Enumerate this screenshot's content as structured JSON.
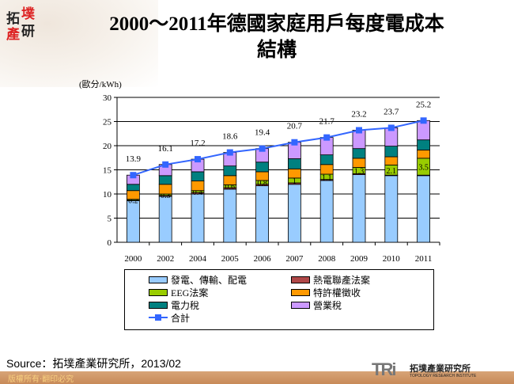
{
  "header": {
    "logo_text": "拓墣產研",
    "title_line1": "2000～2011年德國家庭用戶每度電成本",
    "title_line2": "結構"
  },
  "chart_data": {
    "type": "bar",
    "stacked": true,
    "title": "2000～2011年德國家庭用戶每度電成本結構",
    "ylabel": "(歐分/kWh)",
    "ylim": [
      0,
      30
    ],
    "yticks": [
      "0",
      "5",
      "10",
      "15",
      "20",
      "25",
      "30"
    ],
    "categories": [
      "2000",
      "2002",
      "2004",
      "2005",
      "2006",
      "2007",
      "2008",
      "2009",
      "2010",
      "2011"
    ],
    "grid": true,
    "legend_placement": "bottom",
    "series": [
      {
        "name": "發電、傳輸、配電",
        "color": "#99ccff",
        "values": [
          8.6,
          9.5,
          10.0,
          11.0,
          11.7,
          12.0,
          12.8,
          14.0,
          13.8,
          13.8
        ]
      },
      {
        "name": "熱電聯產法案",
        "color": "#b04848",
        "values": [
          0.1,
          0.2,
          0.3,
          0.3,
          0.3,
          0.3,
          0.2,
          0.2,
          0.1,
          0.1
        ]
      },
      {
        "name": "EEG法案",
        "color": "#99cc00",
        "values": [
          0.2,
          0.3,
          0.4,
          0.6,
          0.8,
          1.0,
          1.1,
          1.3,
          2.1,
          3.5
        ],
        "labels": [
          "0.2",
          "0.3",
          "0.4",
          "0.6",
          "0.8",
          "1",
          "1.1",
          "1.3",
          "2.1",
          "3.5"
        ]
      },
      {
        "name": "特許權徵收",
        "color": "#ff9900",
        "values": [
          1.8,
          2.0,
          2.0,
          1.9,
          1.8,
          1.9,
          2.0,
          1.9,
          1.7,
          1.7
        ]
      },
      {
        "name": "電力稅",
        "color": "#008080",
        "values": [
          1.3,
          1.8,
          1.9,
          2.0,
          2.0,
          2.1,
          2.0,
          2.0,
          2.2,
          2.1
        ]
      },
      {
        "name": "營業稅",
        "color": "#cc99ff",
        "values": [
          1.9,
          2.3,
          2.6,
          2.8,
          2.8,
          3.4,
          3.6,
          3.8,
          3.8,
          4.0
        ]
      }
    ],
    "line": {
      "name": "合計",
      "color": "#3366ff",
      "values": [
        13.9,
        16.1,
        17.2,
        18.6,
        19.4,
        20.7,
        21.7,
        23.2,
        23.7,
        25.2
      ],
      "labels": [
        "13.9",
        "16.1",
        "17.2",
        "18.6",
        "19.4",
        "20.7",
        "21.7",
        "23.2",
        "23.7",
        "25.2"
      ]
    }
  },
  "footer": {
    "source": "Source：拓墣產業研究所，2013/02",
    "copyright": "版權所有‧翻印必究",
    "brand_big": "TRi",
    "brand_cn": "拓墣產業研究所",
    "brand_en": "TOPOLOGY RESEARCH INSTITUTE"
  }
}
